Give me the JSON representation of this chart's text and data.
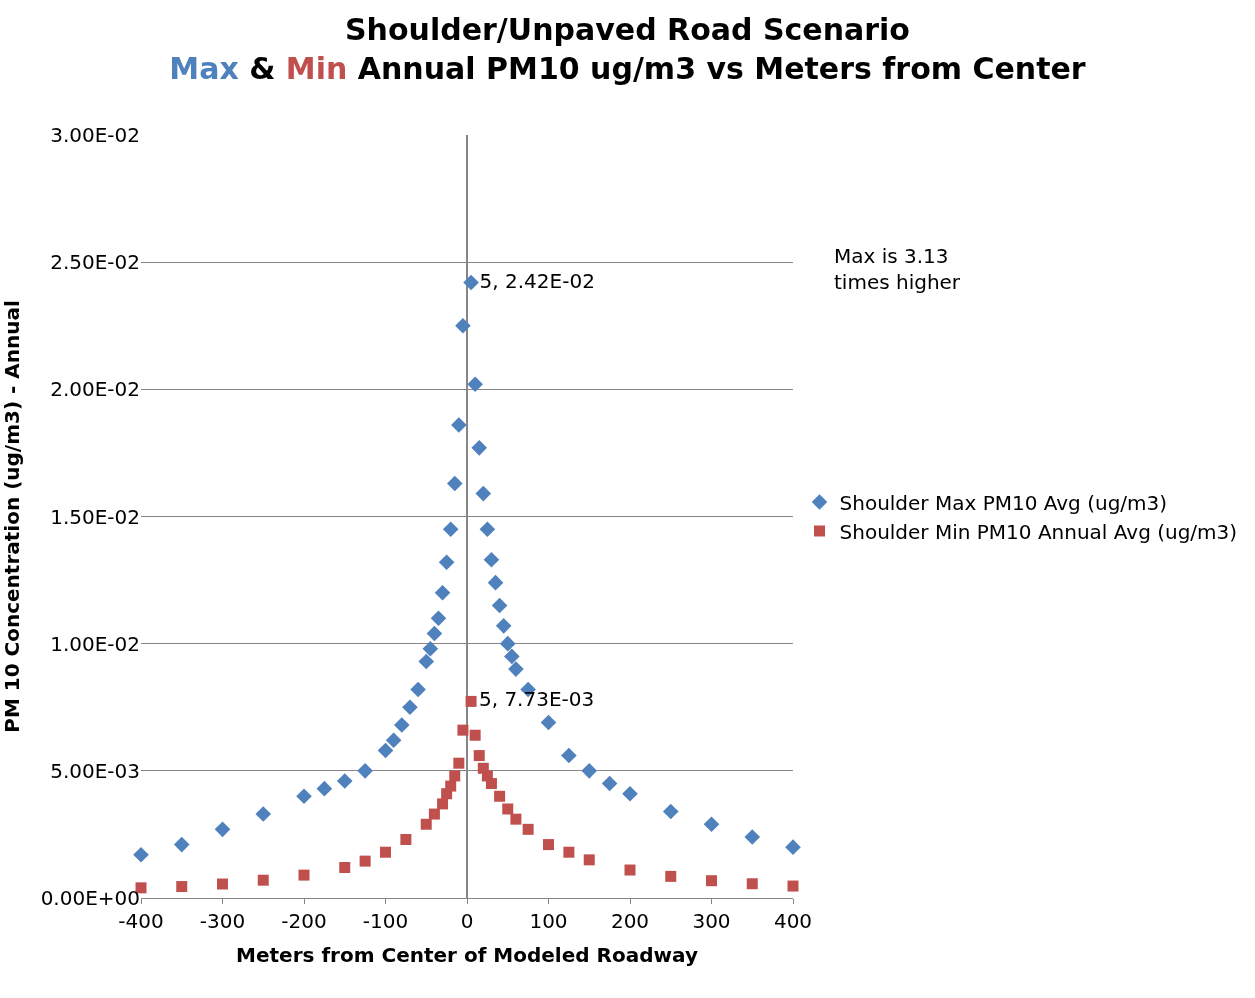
{
  "chart_data": {
    "type": "scatter",
    "title": "Shoulder/Unpaved Road Scenario",
    "subtitle": "Max & Min Annual PM10 ug/m3 vs Meters from Center",
    "xlabel": "Meters from Center of Modeled Roadway",
    "ylabel": "PM 10 Concentration (ug/m3) - Annual",
    "xlim": [
      -400,
      400
    ],
    "xticks": [
      -400,
      -300,
      -200,
      -100,
      0,
      100,
      200,
      300,
      400
    ],
    "ylim": [
      0,
      0.03
    ],
    "yticks": [
      {
        "value": 0,
        "label": "0.00E+00"
      },
      {
        "value": 0.005,
        "label": "5.00E-03"
      },
      {
        "value": 0.01,
        "label": "1.00E-02"
      },
      {
        "value": 0.015,
        "label": "1.50E-02"
      },
      {
        "value": 0.02,
        "label": "2.00E-02"
      },
      {
        "value": 0.025,
        "label": "2.50E-02"
      },
      {
        "value": 0.03,
        "label": "3.00E-02"
      }
    ],
    "grid": "y",
    "legend": "right",
    "series": [
      {
        "name": "Shoulder Max PM10 Avg (ug/m3)",
        "color": "#4f81bd",
        "marker": "diamond",
        "x": [
          -400,
          -350,
          -300,
          -250,
          -200,
          -175,
          -150,
          -125,
          -100,
          -90,
          -80,
          -70,
          -60,
          -50,
          -45,
          -40,
          -35,
          -30,
          -25,
          -20,
          -15,
          -10,
          -5,
          5,
          10,
          15,
          20,
          25,
          30,
          35,
          40,
          45,
          50,
          55,
          60,
          75,
          100,
          125,
          150,
          175,
          200,
          250,
          300,
          350,
          400
        ],
        "values": [
          0.0017,
          0.0021,
          0.0027,
          0.0033,
          0.004,
          0.0043,
          0.0046,
          0.005,
          0.0058,
          0.0062,
          0.0068,
          0.0075,
          0.0082,
          0.0093,
          0.0098,
          0.0104,
          0.011,
          0.012,
          0.0132,
          0.0145,
          0.0163,
          0.0186,
          0.0225,
          0.0242,
          0.0202,
          0.0177,
          0.0159,
          0.0145,
          0.0133,
          0.0124,
          0.0115,
          0.0107,
          0.01,
          0.0095,
          0.009,
          0.0082,
          0.0069,
          0.0056,
          0.005,
          0.0045,
          0.0041,
          0.0034,
          0.0029,
          0.0024,
          0.002
        ],
        "value_labels": [
          null,
          null,
          null,
          null,
          null,
          null,
          null,
          null,
          null,
          null,
          null,
          null,
          null,
          null,
          null,
          null,
          null,
          null,
          null,
          null,
          null,
          null,
          null,
          "5, 2.42E-02",
          null,
          null,
          null,
          null,
          null,
          null,
          null,
          null,
          null,
          null,
          null,
          null,
          null,
          null,
          null,
          null,
          null,
          null,
          null,
          null,
          null
        ]
      },
      {
        "name": "Shoulder Min PM10 Annual Avg (ug/m3)",
        "color": "#c0504d",
        "marker": "square",
        "x": [
          -400,
          -350,
          -300,
          -250,
          -200,
          -150,
          -125,
          -100,
          -75,
          -50,
          -40,
          -30,
          -25,
          -20,
          -15,
          -10,
          -5,
          5,
          10,
          15,
          20,
          25,
          30,
          40,
          50,
          60,
          75,
          100,
          125,
          150,
          200,
          250,
          300,
          350,
          400
        ],
        "values": [
          0.0004,
          0.00045,
          0.00055,
          0.0007,
          0.0009,
          0.0012,
          0.00145,
          0.0018,
          0.0023,
          0.0029,
          0.0033,
          0.0037,
          0.0041,
          0.0044,
          0.0048,
          0.0053,
          0.0066,
          0.00773,
          0.0064,
          0.0056,
          0.0051,
          0.0048,
          0.0045,
          0.004,
          0.0035,
          0.0031,
          0.0027,
          0.0021,
          0.0018,
          0.0015,
          0.0011,
          0.00085,
          0.00068,
          0.00056,
          0.00047
        ],
        "value_labels": [
          null,
          null,
          null,
          null,
          null,
          null,
          null,
          null,
          null,
          null,
          null,
          null,
          null,
          null,
          null,
          null,
          null,
          "5, 7.73E-03",
          null,
          null,
          null,
          null,
          null,
          null,
          null,
          null,
          null,
          null,
          null,
          null,
          null,
          null,
          null,
          null,
          null
        ]
      }
    ],
    "annotations": [
      "Max is 3.13\ntimes higher"
    ]
  }
}
